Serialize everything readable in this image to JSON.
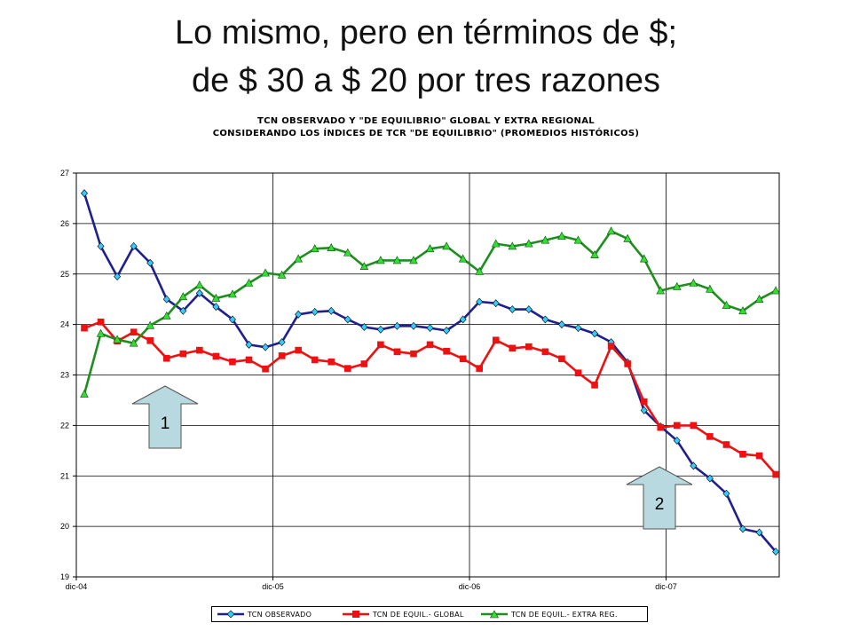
{
  "slide": {
    "title_line1": "Lo mismo, pero en términos de $;",
    "title_line2": "de $ 30 a $ 20 por tres razones"
  },
  "annotations": {
    "arrow1_label": "1",
    "arrow2_label": "2"
  },
  "colors": {
    "observado": "#1F1F8F",
    "observado_marker": "#33CCFF",
    "global": "#EE1111",
    "extra": "#1E8F1E",
    "extra_marker": "#33DD33",
    "arrow_fill": "#B8D9E0",
    "grid": "#000000"
  },
  "chart_data": {
    "type": "line",
    "title_line1": "TCN OBSERVADO Y \"DE EQUILIBRIO\" GLOBAL Y EXTRA REGIONAL",
    "title_line2": "CONSIDERANDO LOS ÍNDICES DE TCR \"DE EQUILIBRIO\" (PROMEDIOS HISTÓRICOS)",
    "xlabel": "",
    "ylabel": "",
    "ylim": [
      19,
      27
    ],
    "yticks": [
      "19",
      "20",
      "21",
      "22",
      "23",
      "24",
      "25",
      "26",
      "27"
    ],
    "xticks": [
      "dic-04",
      "dic-05",
      "dic-06",
      "dic-07"
    ],
    "grid": true,
    "legend_position": "bottom",
    "series": [
      {
        "name": "TCN OBSERVADO",
        "values": [
          26.6,
          25.55,
          24.95,
          25.55,
          25.22,
          24.5,
          24.27,
          24.62,
          24.35,
          24.1,
          23.6,
          23.55,
          23.65,
          24.2,
          24.25,
          24.27,
          24.1,
          23.95,
          23.9,
          23.97,
          23.97,
          23.93,
          23.88,
          24.1,
          24.45,
          24.42,
          24.3,
          24.3,
          24.1,
          24.0,
          23.93,
          23.82,
          23.65,
          23.25,
          22.3,
          21.98,
          21.7,
          21.2,
          20.95,
          20.65,
          19.95,
          19.88,
          19.5
        ]
      },
      {
        "name": "TCN DE EQUIL.- GLOBAL",
        "values": [
          23.93,
          24.05,
          23.67,
          23.85,
          23.68,
          23.33,
          23.42,
          23.49,
          23.37,
          23.26,
          23.3,
          23.12,
          23.38,
          23.49,
          23.3,
          23.26,
          23.13,
          23.22,
          23.6,
          23.46,
          23.42,
          23.6,
          23.47,
          23.32,
          23.13,
          23.69,
          23.53,
          23.56,
          23.46,
          23.32,
          23.04,
          22.8,
          23.57,
          23.22,
          22.47,
          21.96,
          22.0,
          22.0,
          21.78,
          21.62,
          21.43,
          21.4,
          21.03
        ]
      },
      {
        "name": "TCN DE EQUIL.- EXTRA REG.",
        "values": [
          22.62,
          23.82,
          23.7,
          23.63,
          23.98,
          24.17,
          24.55,
          24.78,
          24.52,
          24.6,
          24.82,
          25.02,
          24.98,
          25.3,
          25.5,
          25.52,
          25.42,
          25.15,
          25.27,
          25.27,
          25.27,
          25.5,
          25.55,
          25.3,
          25.05,
          25.6,
          25.55,
          25.6,
          25.67,
          25.75,
          25.67,
          25.38,
          25.85,
          25.7,
          25.3,
          24.67,
          24.75,
          24.82,
          24.7,
          24.38,
          24.27,
          24.5,
          24.67
        ]
      }
    ]
  }
}
